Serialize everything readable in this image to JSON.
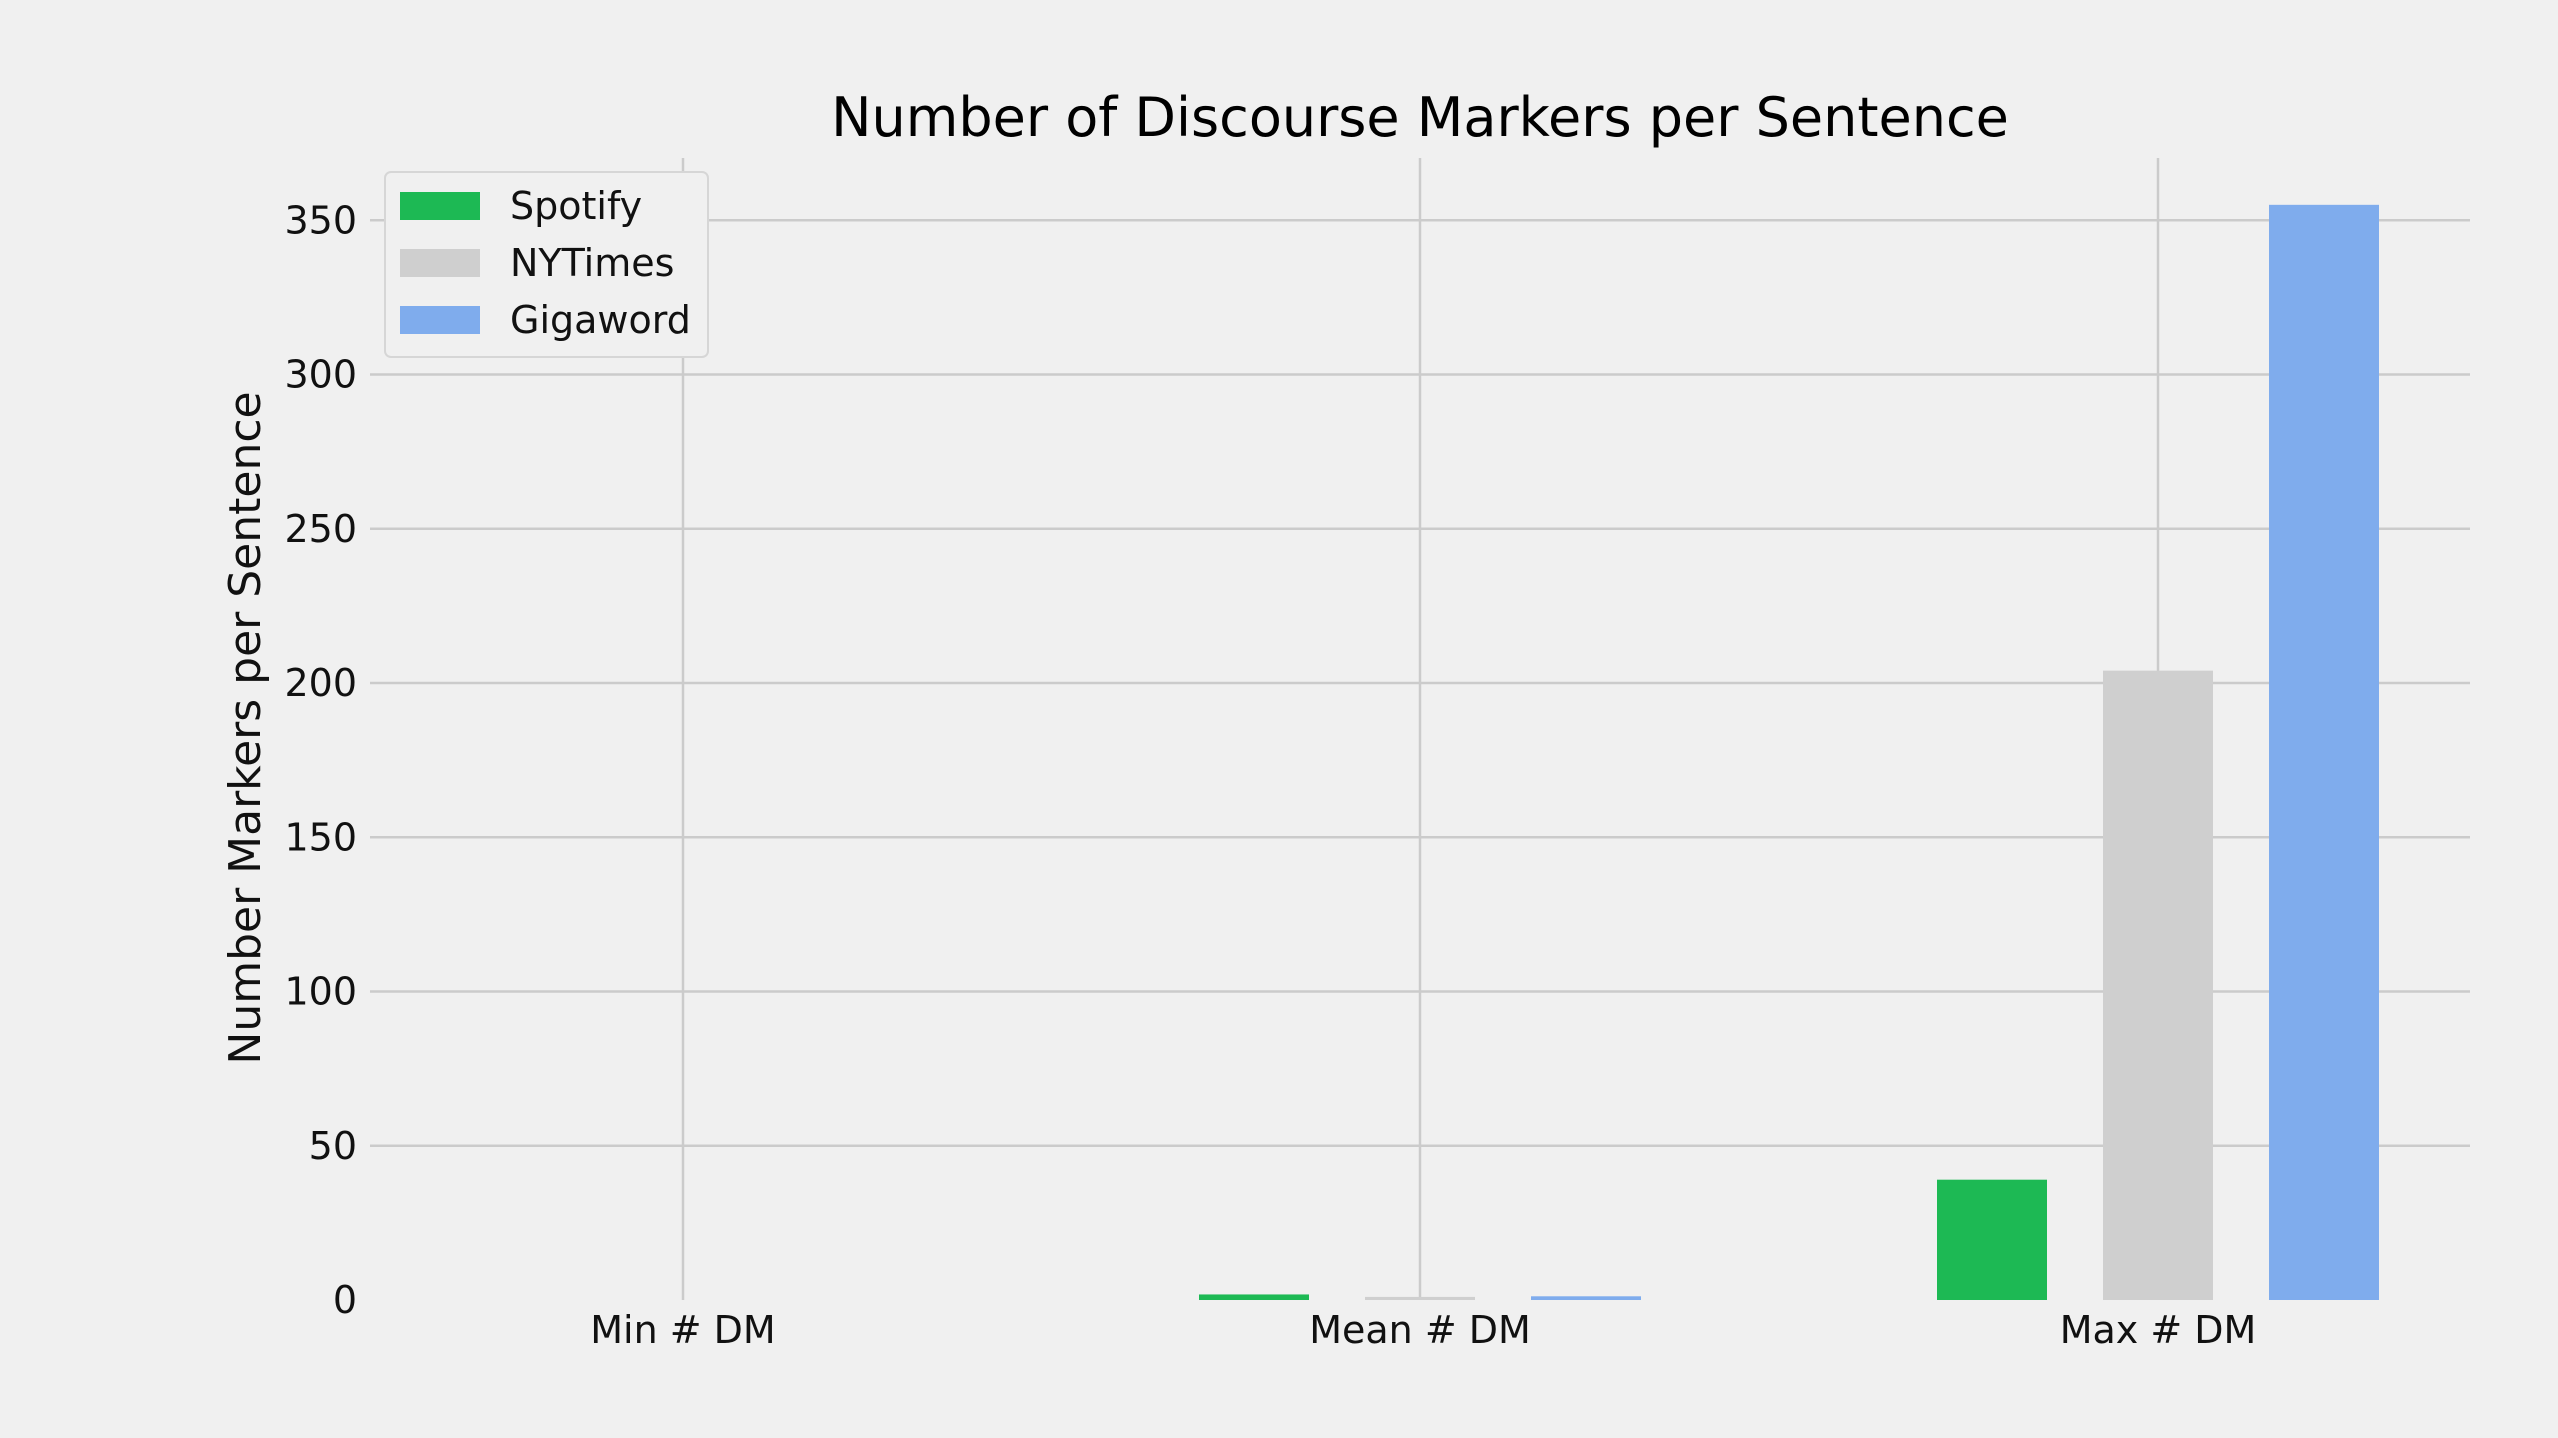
{
  "chart_data": {
    "type": "bar",
    "title": "Number of Discourse Markers per Sentence",
    "xlabel": "",
    "ylabel": "Number Markers per Sentence",
    "categories": [
      "Min # DM",
      "Mean # DM",
      "Max # DM"
    ],
    "series": [
      {
        "name": "Spotify",
        "values": [
          0,
          1.8,
          39
        ],
        "color": "#1db954"
      },
      {
        "name": "NYTimes",
        "values": [
          0,
          1.0,
          204
        ],
        "color": "#cfcfcf"
      },
      {
        "name": "Gigaword",
        "values": [
          0,
          1.2,
          355
        ],
        "color": "#7faced"
      }
    ],
    "yticks": [
      "0",
      "50",
      "100",
      "150",
      "200",
      "250",
      "300",
      "350"
    ],
    "ylim": [
      0,
      370
    ],
    "grid": true,
    "legend_position": "top-left"
  }
}
